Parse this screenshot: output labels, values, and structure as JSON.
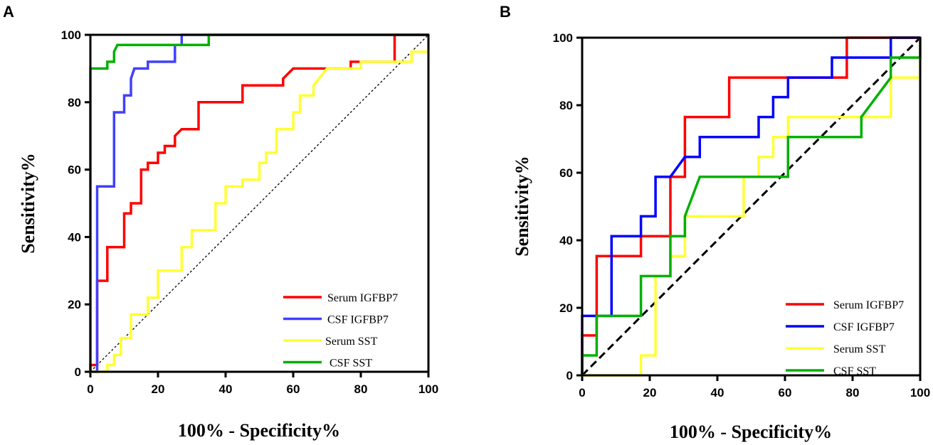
{
  "panel_labels": [
    "A",
    "B"
  ],
  "chart_data": [
    {
      "type": "line",
      "panel": "A",
      "xlabel": "100% - Specificity%",
      "ylabel": "Sensitivity%",
      "xlim": [
        0,
        100
      ],
      "ylim": [
        0,
        100
      ],
      "xticks": [
        0,
        20,
        40,
        60,
        80,
        100
      ],
      "yticks": [
        0,
        20,
        40,
        60,
        80,
        100
      ],
      "reference_line": {
        "from": [
          0,
          0
        ],
        "to": [
          100,
          100
        ],
        "style": "dotted"
      },
      "legend_position": "bottom-right",
      "series": [
        {
          "name": "Serum IGFBP7",
          "color": "#ff0000",
          "points": [
            [
              0,
              0
            ],
            [
              0,
              2
            ],
            [
              2,
              2
            ],
            [
              2,
              27
            ],
            [
              5,
              27
            ],
            [
              5,
              37
            ],
            [
              10,
              37
            ],
            [
              10,
              47
            ],
            [
              12,
              47
            ],
            [
              12,
              50
            ],
            [
              15,
              50
            ],
            [
              15,
              60
            ],
            [
              17,
              60
            ],
            [
              17,
              62
            ],
            [
              20,
              62
            ],
            [
              20,
              65
            ],
            [
              22,
              65
            ],
            [
              22,
              67
            ],
            [
              25,
              67
            ],
            [
              25,
              70
            ],
            [
              27,
              72
            ],
            [
              32,
              72
            ],
            [
              32,
              80
            ],
            [
              45,
              80
            ],
            [
              45,
              85
            ],
            [
              57,
              85
            ],
            [
              57,
              87
            ],
            [
              60,
              90
            ],
            [
              70,
              90
            ],
            [
              77,
              90
            ],
            [
              77,
              92
            ],
            [
              90,
              92
            ],
            [
              90,
              100
            ],
            [
              100,
              100
            ]
          ]
        },
        {
          "name": "CSF IGFBP7",
          "color": "#4040ff",
          "points": [
            [
              0,
              0
            ],
            [
              2,
              0
            ],
            [
              2,
              55
            ],
            [
              7,
              55
            ],
            [
              7,
              77
            ],
            [
              10,
              77
            ],
            [
              10,
              82
            ],
            [
              12,
              82
            ],
            [
              12,
              87
            ],
            [
              13,
              90
            ],
            [
              17,
              90
            ],
            [
              17,
              92
            ],
            [
              20,
              92
            ],
            [
              25,
              92
            ],
            [
              25,
              97
            ],
            [
              27,
              97
            ],
            [
              27,
              100
            ],
            [
              100,
              100
            ]
          ]
        },
        {
          "name": "Serum SST",
          "color": "#ffff33",
          "points": [
            [
              0,
              0
            ],
            [
              5,
              0
            ],
            [
              5,
              2
            ],
            [
              7,
              2
            ],
            [
              7,
              5
            ],
            [
              9,
              5
            ],
            [
              9,
              10
            ],
            [
              12,
              10
            ],
            [
              12,
              17
            ],
            [
              17,
              17
            ],
            [
              17,
              22
            ],
            [
              20,
              22
            ],
            [
              20,
              27
            ],
            [
              20,
              30
            ],
            [
              27,
              30
            ],
            [
              27,
              37
            ],
            [
              30,
              37
            ],
            [
              30,
              42
            ],
            [
              37,
              42
            ],
            [
              37,
              50
            ],
            [
              40,
              50
            ],
            [
              40,
              55
            ],
            [
              45,
              55
            ],
            [
              45,
              57
            ],
            [
              50,
              57
            ],
            [
              50,
              62
            ],
            [
              52,
              62
            ],
            [
              52,
              65
            ],
            [
              55,
              65
            ],
            [
              55,
              72
            ],
            [
              60,
              72
            ],
            [
              60,
              77
            ],
            [
              62,
              77
            ],
            [
              62,
              82
            ],
            [
              66,
              82
            ],
            [
              66,
              85
            ],
            [
              70,
              90
            ],
            [
              80,
              90
            ],
            [
              80,
              92
            ],
            [
              95,
              92
            ],
            [
              95,
              95
            ],
            [
              100,
              95
            ],
            [
              100,
              100
            ]
          ]
        },
        {
          "name": "CSF SST",
          "color": "#00b000",
          "points": [
            [
              0,
              0
            ],
            [
              0,
              90
            ],
            [
              5,
              90
            ],
            [
              5,
              92
            ],
            [
              7,
              92
            ],
            [
              7,
              95
            ],
            [
              8,
              97
            ],
            [
              35,
              97
            ],
            [
              35,
              100
            ],
            [
              100,
              100
            ]
          ]
        }
      ]
    },
    {
      "type": "line",
      "panel": "B",
      "xlabel": "100% - Specificity%",
      "ylabel": "Sensitivity%",
      "xlim": [
        0,
        100
      ],
      "ylim": [
        0,
        100
      ],
      "xticks": [
        0,
        20,
        40,
        60,
        80,
        100
      ],
      "yticks": [
        0,
        20,
        40,
        60,
        80,
        100
      ],
      "reference_line": {
        "from": [
          0,
          0
        ],
        "to": [
          100,
          100
        ],
        "style": "dashed"
      },
      "legend_position": "bottom-right",
      "series": [
        {
          "name": "Serum IGFBP7",
          "color": "#ff0000",
          "points": [
            [
              0,
              0
            ],
            [
              0,
              11.8
            ],
            [
              4.3,
              11.8
            ],
            [
              4.3,
              35.3
            ],
            [
              17.4,
              35.3
            ],
            [
              17.4,
              41.2
            ],
            [
              26.1,
              41.2
            ],
            [
              26.1,
              58.8
            ],
            [
              30.4,
              58.8
            ],
            [
              30.4,
              76.5
            ],
            [
              39.1,
              76.5
            ],
            [
              43.5,
              76.5
            ],
            [
              43.5,
              88.2
            ],
            [
              78.3,
              88.2
            ],
            [
              78.3,
              100
            ],
            [
              100,
              100
            ]
          ]
        },
        {
          "name": "CSF IGFBP7",
          "color": "#0000ff",
          "points": [
            [
              0,
              0
            ],
            [
              0,
              17.6
            ],
            [
              8.7,
              17.6
            ],
            [
              8.7,
              41.2
            ],
            [
              17.4,
              41.2
            ],
            [
              17.4,
              47.1
            ],
            [
              21.7,
              47.1
            ],
            [
              21.7,
              58.8
            ],
            [
              26.1,
              58.8
            ],
            [
              30.4,
              64.7
            ],
            [
              34.8,
              64.7
            ],
            [
              34.8,
              70.6
            ],
            [
              52.2,
              70.6
            ],
            [
              52.2,
              76.5
            ],
            [
              56.5,
              76.5
            ],
            [
              56.5,
              82.4
            ],
            [
              60.9,
              82.4
            ],
            [
              60.9,
              88.2
            ],
            [
              73.9,
              88.2
            ],
            [
              73.9,
              94.1
            ],
            [
              91.3,
              94.1
            ],
            [
              91.3,
              100
            ],
            [
              100,
              100
            ]
          ]
        },
        {
          "name": "Serum SST",
          "color": "#ffff33",
          "points": [
            [
              0,
              0
            ],
            [
              17.4,
              0
            ],
            [
              17.4,
              5.9
            ],
            [
              21.7,
              5.9
            ],
            [
              21.7,
              29.4
            ],
            [
              26.1,
              29.4
            ],
            [
              26.1,
              35.3
            ],
            [
              30.4,
              35.3
            ],
            [
              30.4,
              47.1
            ],
            [
              47.8,
              47.1
            ],
            [
              47.8,
              58.8
            ],
            [
              52.2,
              58.8
            ],
            [
              52.2,
              64.7
            ],
            [
              56.5,
              64.7
            ],
            [
              56.5,
              70.6
            ],
            [
              60.9,
              70.6
            ],
            [
              60.9,
              76.5
            ],
            [
              91.3,
              76.5
            ],
            [
              91.3,
              88.2
            ],
            [
              100,
              88.2
            ],
            [
              100,
              100
            ]
          ]
        },
        {
          "name": "CSF SST",
          "color": "#00b000",
          "points": [
            [
              0,
              0
            ],
            [
              0,
              5.9
            ],
            [
              4.3,
              5.9
            ],
            [
              4.3,
              17.6
            ],
            [
              17.4,
              17.6
            ],
            [
              17.4,
              29.4
            ],
            [
              26.1,
              29.4
            ],
            [
              26.1,
              41.2
            ],
            [
              30.4,
              41.2
            ],
            [
              30.4,
              47.1
            ],
            [
              34.8,
              58.8
            ],
            [
              60.9,
              58.8
            ],
            [
              60.9,
              70.6
            ],
            [
              82.6,
              70.6
            ],
            [
              82.6,
              76.5
            ],
            [
              91.3,
              88.2
            ],
            [
              91.3,
              94.1
            ],
            [
              100,
              94.1
            ],
            [
              100,
              100
            ]
          ]
        }
      ]
    }
  ]
}
